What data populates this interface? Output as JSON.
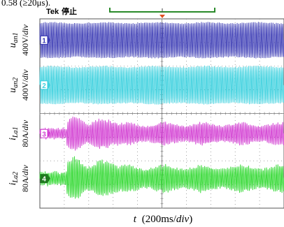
{
  "header": {
    "caption_fragment": "0.58 (≥20μs).",
    "brand": "Tek",
    "run_state": "停止"
  },
  "channels": [
    {
      "marker": "1",
      "name_main": "u",
      "name_sub": "an1",
      "scale": "400V/div",
      "color": "#3a3ab4",
      "marker_color": "#3a3ab4"
    },
    {
      "marker": "2",
      "name_main": "u",
      "name_sub": "an2",
      "scale": "400V/div",
      "color": "#39d0de",
      "marker_color": "#39d0de"
    },
    {
      "marker": "3",
      "name_main": "i",
      "name_sub": "La1",
      "scale": "80A/div",
      "color": "#d23cd2",
      "marker_color": "#d23cd2"
    },
    {
      "marker": "4",
      "name_main": "i",
      "name_sub": "La2",
      "scale": "80A/div",
      "color": "#2ed82e",
      "marker_color": "#1f7a1f"
    }
  ],
  "xaxis": {
    "label_var": "t",
    "label_scale": "(200ms/div)"
  },
  "colors": {
    "trigger_marker": "#e05020",
    "grid": "#8a8a8a",
    "acquisition_bar": "#2a8a2a"
  },
  "chart_data": {
    "type": "line",
    "title": "",
    "x_divisions": 10,
    "y_divisions": 8,
    "xlabel": "t (200ms/div)",
    "series": [
      {
        "name": "u_an1",
        "scale": "400V/div",
        "center_div": 3.1,
        "amplitude_div": 0.75,
        "envelope": "constant"
      },
      {
        "name": "u_an2",
        "scale": "400V/div",
        "center_div": 1.2,
        "amplitude_div": 0.8,
        "envelope": "constant"
      },
      {
        "name": "i_La1",
        "scale": "80A/div",
        "center_div": -0.85,
        "amplitude_div": 0.45,
        "envelope": "transient_then_steady"
      },
      {
        "name": "i_La2",
        "scale": "80A/div",
        "center_div": -2.75,
        "amplitude_div": 0.55,
        "envelope": "transient_then_steady"
      }
    ]
  }
}
